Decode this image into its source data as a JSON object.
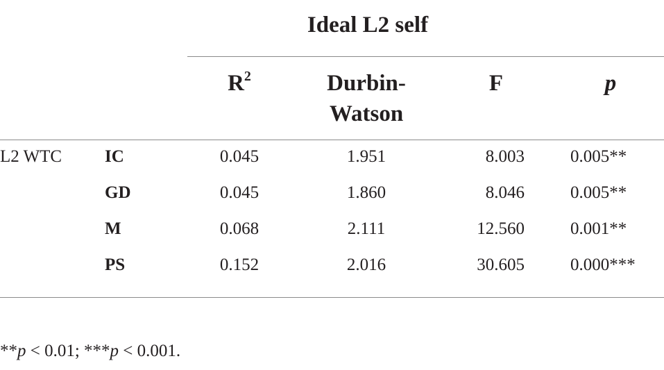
{
  "table": {
    "group_header": "Ideal L2 self",
    "columns": {
      "r2_base": "R",
      "r2_sup": "2",
      "dw_line1": "Durbin-",
      "dw_line2": "Watson",
      "f": "F",
      "p": "p"
    },
    "row_group": "L2 WTC",
    "rows": [
      {
        "label": "IC",
        "r2": "0.045",
        "dw": "1.951",
        "f": "8.003",
        "p": "0.005**"
      },
      {
        "label": "GD",
        "r2": "0.045",
        "dw": "1.860",
        "f": "8.046",
        "p": "0.005**"
      },
      {
        "label": "M",
        "r2": "0.068",
        "dw": "2.111",
        "f": "12.560",
        "p": "0.001**"
      },
      {
        "label": "PS",
        "r2": "0.152",
        "dw": "2.016",
        "f": "30.605",
        "p": "0.000***"
      }
    ]
  },
  "footnote": {
    "part1_stars": "**",
    "part1_var": "p",
    "part1_rest": " < 0.01; ",
    "part2_stars": "***",
    "part2_var": "p",
    "part2_rest": " < 0.001."
  }
}
